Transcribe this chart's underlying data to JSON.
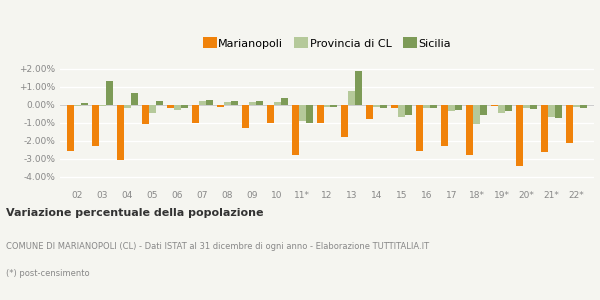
{
  "years": [
    "02",
    "03",
    "04",
    "05",
    "06",
    "07",
    "08",
    "09",
    "10",
    "11*",
    "12",
    "13",
    "14",
    "15",
    "16",
    "17",
    "18*",
    "19*",
    "20*",
    "21*",
    "22*"
  ],
  "marianopoli": [
    -2.55,
    -2.25,
    -3.05,
    -1.05,
    -0.15,
    -1.0,
    -0.1,
    -1.3,
    -1.0,
    -2.8,
    -1.0,
    -1.8,
    -0.75,
    -0.15,
    -2.55,
    -2.25,
    -2.8,
    -0.05,
    -3.4,
    -2.6,
    -2.1
  ],
  "provincia_cl": [
    -0.05,
    -0.05,
    -0.15,
    -0.45,
    -0.25,
    0.2,
    0.15,
    0.15,
    0.15,
    -0.9,
    -0.1,
    0.8,
    -0.1,
    -0.65,
    -0.15,
    -0.35,
    -1.05,
    -0.45,
    -0.15,
    -0.65,
    -0.1
  ],
  "sicilia": [
    0.1,
    1.35,
    0.65,
    0.2,
    -0.15,
    0.3,
    0.2,
    0.2,
    0.4,
    -1.0,
    -0.1,
    1.9,
    -0.15,
    -0.55,
    -0.15,
    -0.3,
    -0.55,
    -0.35,
    -0.2,
    -0.7,
    -0.15
  ],
  "color_marianopoli": "#f0820a",
  "color_provincia": "#b5c99a",
  "color_sicilia": "#7d9b57",
  "title_bold": "Variazione percentuale della popolazione",
  "subtitle1": "COMUNE DI MARIANOPOLI (CL) - Dati ISTAT al 31 dicembre di ogni anno - Elaborazione TUTTITALIA.IT",
  "subtitle2": "(*) post-censimento",
  "ylim_min": -4.5,
  "ylim_max": 2.5,
  "yticks": [
    -4.0,
    -3.0,
    -2.0,
    -1.0,
    0.0,
    1.0,
    2.0
  ],
  "ytick_labels": [
    "-4.00%",
    "-3.00%",
    "-2.00%",
    "-1.00%",
    "0.00%",
    "+1.00%",
    "+2.00%"
  ],
  "background_color": "#f5f5f0",
  "grid_color": "#ffffff",
  "bar_width": 0.28
}
